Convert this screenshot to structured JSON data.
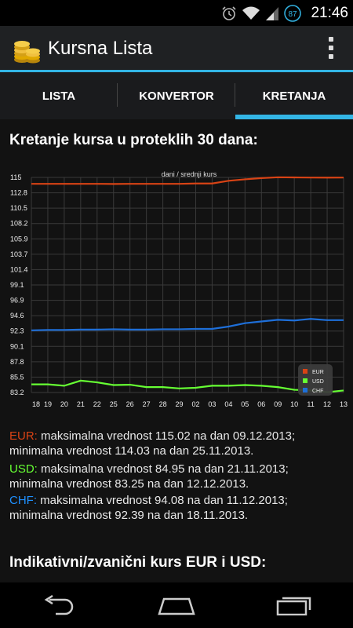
{
  "status": {
    "time": "21:46",
    "battery": "87"
  },
  "app": {
    "title": "Kursna Lista"
  },
  "tabs": [
    {
      "label": "LISTA"
    },
    {
      "label": "KONVERTOR"
    },
    {
      "label": "KRETANJA"
    }
  ],
  "section1": {
    "title": "Kretanje kursa u proteklih 30 dana:"
  },
  "chart_data": {
    "type": "line",
    "title": "dani / srednji kurs",
    "y_ticks": [
      "115",
      "112.8",
      "110.5",
      "108.2",
      "105.9",
      "103.7",
      "101.4",
      "99.1",
      "96.9",
      "94.6",
      "92.3",
      "90.1",
      "87.8",
      "85.5",
      "83.2"
    ],
    "ylim": [
      83.2,
      115
    ],
    "x_labels": [
      "18",
      "19",
      "20",
      "21",
      "22",
      "25",
      "26",
      "27",
      "28",
      "29",
      "02",
      "03",
      "04",
      "05",
      "06",
      "09",
      "10",
      "11",
      "12",
      "13"
    ],
    "grid": true,
    "legend_position": "bottom-right",
    "series": [
      {
        "name": "EUR",
        "color": "#d84315",
        "values": [
          114.05,
          114.05,
          114.05,
          114.05,
          114.05,
          114.03,
          114.05,
          114.05,
          114.05,
          114.05,
          114.1,
          114.1,
          114.5,
          114.72,
          114.9,
          115.02,
          115.0,
          114.98,
          114.97,
          114.98
        ]
      },
      {
        "name": "USD",
        "color": "#66ff33",
        "values": [
          84.4,
          84.4,
          84.2,
          84.95,
          84.7,
          84.3,
          84.35,
          84.0,
          84.0,
          83.8,
          83.9,
          84.2,
          84.2,
          84.3,
          84.2,
          84.0,
          83.6,
          83.5,
          83.25,
          83.5
        ]
      },
      {
        "name": "CHF",
        "color": "#1e6fd9",
        "values": [
          92.39,
          92.45,
          92.45,
          92.5,
          92.5,
          92.55,
          92.5,
          92.5,
          92.55,
          92.55,
          92.6,
          92.6,
          92.95,
          93.45,
          93.7,
          93.95,
          93.85,
          94.08,
          93.9,
          93.9
        ]
      }
    ]
  },
  "stats": [
    {
      "cur": "EUR:",
      "color": "#d84315",
      "max_text": " maksimalna vrednost 115.02 na dan 09.12.2013;",
      "min_text": "minimalna vrednost 114.03 na dan 25.11.2013."
    },
    {
      "cur": "USD:",
      "color": "#66ff33",
      "max_text": " maksimalna vrednost 84.95 na dan 21.11.2013;",
      "min_text": "minimalna vrednost 83.25 na dan 12.12.2013."
    },
    {
      "cur": "CHF:",
      "color": "#1e90ff",
      "max_text": " maksimalna vrednost 94.08 na dan 11.12.2013;",
      "min_text": "minimalna vrednost 92.39 na dan 18.11.2013."
    }
  ],
  "section2": {
    "title": "Indikativni/zvanični kurs EUR i USD:"
  },
  "nav": {
    "back": "back-icon",
    "home": "home-icon",
    "recents": "recents-icon"
  }
}
